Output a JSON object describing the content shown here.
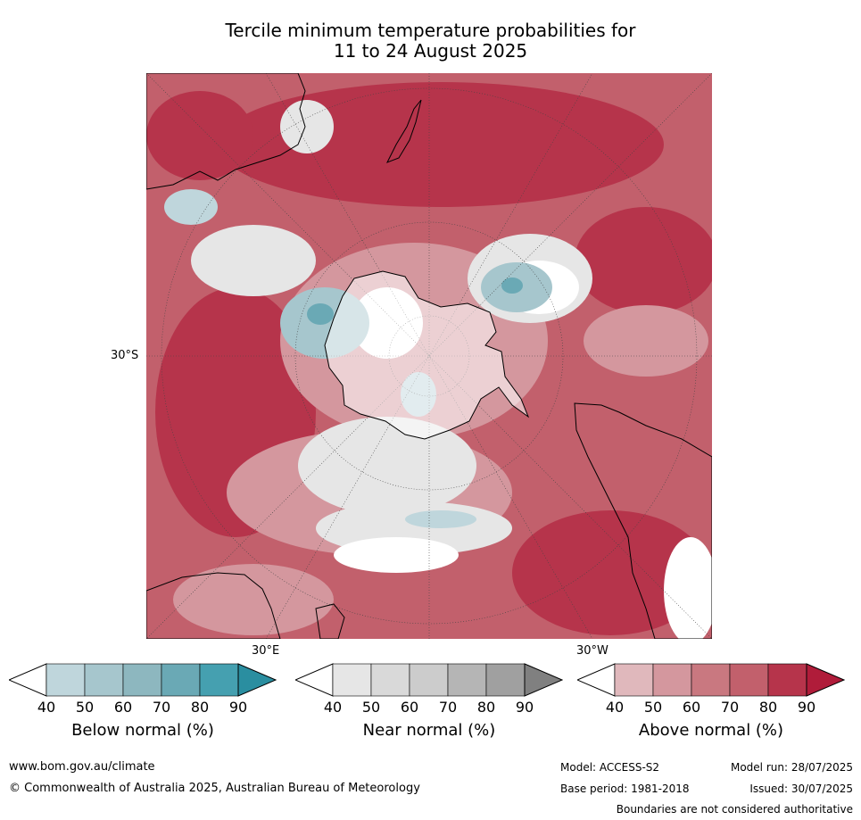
{
  "title": {
    "line1": "Tercile minimum temperature probabilities for",
    "line2": "11 to 24 August 2025"
  },
  "map": {
    "projection": "south polar stereographic",
    "labels": {
      "lat_30s": "30°S",
      "lon_30e": "30°E",
      "lon_30w": "30°W"
    },
    "colors": {
      "above": [
        "#e0b8bc",
        "#d4979e",
        "#c97880",
        "#c2606c",
        "#b6344b",
        "#b01c3a"
      ],
      "near": [
        "#e6e6e6",
        "#d9d9d9",
        "#cccccc",
        "#b5b5b5",
        "#a0a0a0",
        "#808080"
      ],
      "below": [
        "#bfd6dc",
        "#a6c6cd",
        "#8db7bf",
        "#6aa9b5",
        "#45a0b0",
        "#2a8ea0"
      ],
      "land_outline": "#000000"
    }
  },
  "colorbars": {
    "ticks": [
      "40",
      "50",
      "60",
      "70",
      "80",
      "90"
    ],
    "below": {
      "label": "Below normal (%)",
      "colors": [
        "#bfd6dc",
        "#a6c6cd",
        "#8db7bf",
        "#6aa9b5",
        "#45a0b0",
        "#2a8ea0"
      ]
    },
    "near": {
      "label": "Near normal (%)",
      "colors": [
        "#e6e6e6",
        "#d9d9d9",
        "#cccccc",
        "#b5b5b5",
        "#a0a0a0",
        "#808080"
      ]
    },
    "above": {
      "label": "Above normal (%)",
      "colors": [
        "#e0b8bc",
        "#d4979e",
        "#c97880",
        "#c2606c",
        "#b6344b",
        "#b01c3a"
      ]
    }
  },
  "footer": {
    "website": "www.bom.gov.au/climate",
    "copyright": "© Commonwealth of Australia 2025, Australian Bureau of Meteorology",
    "model": "Model: ACCESS-S2",
    "base_period": "Base period: 1981-2018",
    "model_run": "Model run: 28/07/2025",
    "issued": "Issued: 30/07/2025",
    "disclaimer": "Boundaries are not considered authoritative"
  }
}
